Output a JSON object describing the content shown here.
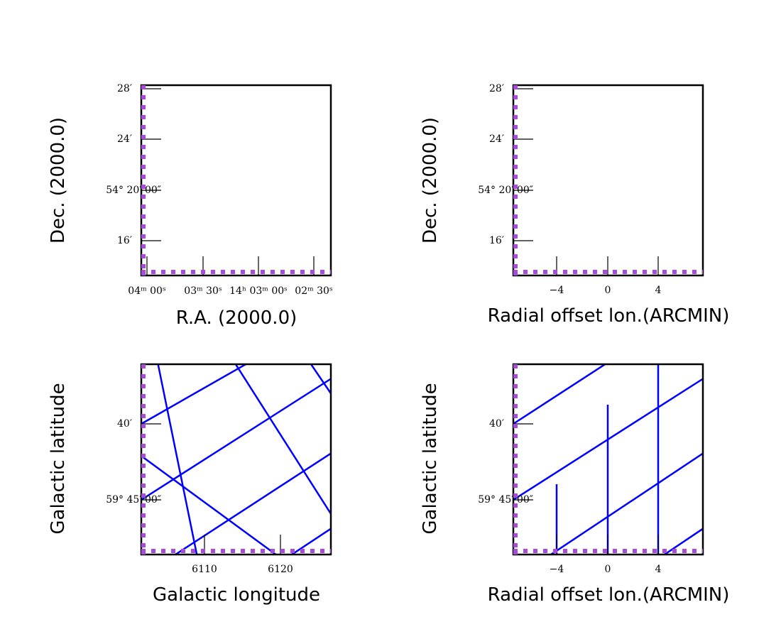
{
  "chart_data": [
    {
      "type": "other",
      "name": "panel-top-left",
      "xlabel": "R.A. (2000.0)",
      "ylabel": "Dec. (2000.0)",
      "x_ticks": [
        {
          "label": "04ᵐ 00ˢ"
        },
        {
          "label": "03ᵐ 30ˢ"
        },
        {
          "label": "14ʰ 03ᵐ 00ˢ"
        },
        {
          "label": "02ᵐ 30ˢ"
        }
      ],
      "y_ticks": [
        {
          "label": "28′"
        },
        {
          "label": "24′"
        },
        {
          "label": "54° 20′ 00″"
        },
        {
          "label": "16′"
        }
      ],
      "grid_lines": false,
      "dashed_axes": true
    },
    {
      "type": "other",
      "name": "panel-top-right",
      "xlabel": "Radial offset lon.(ARCMIN)",
      "ylabel": "Dec. (2000.0)",
      "x_ticks": [
        {
          "label": "−4"
        },
        {
          "label": "0"
        },
        {
          "label": "4"
        }
      ],
      "y_ticks": [
        {
          "label": "28′"
        },
        {
          "label": "24′"
        },
        {
          "label": "54° 20′ 00″"
        },
        {
          "label": "16′"
        }
      ],
      "grid_lines": false,
      "dashed_axes": true
    },
    {
      "type": "other",
      "name": "panel-bottom-left",
      "xlabel": "Galactic longitude",
      "ylabel": "Galactic latitude",
      "x_ticks": [
        {
          "label": "6110"
        },
        {
          "label": "6120"
        }
      ],
      "y_ticks": [
        {
          "label": "40′"
        },
        {
          "label": "59° 45′ 00″"
        }
      ],
      "grid_lines": true,
      "grid_color": "#0000ff",
      "dashed_axes": true
    },
    {
      "type": "other",
      "name": "panel-bottom-right",
      "xlabel": "Radial offset lon.(ARCMIN)",
      "ylabel": "Galactic latitude",
      "x_ticks": [
        {
          "label": "−4"
        },
        {
          "label": "0"
        },
        {
          "label": "4"
        }
      ],
      "y_ticks": [
        {
          "label": "40′"
        },
        {
          "label": "59° 45′ 00″"
        }
      ],
      "grid_lines": true,
      "grid_color": "#0000ff",
      "dashed_axes": true
    }
  ],
  "colors": {
    "frame": "#000000",
    "grid": "#0000ff",
    "dashed_axis": "#a64bdb",
    "background": "#ffffff"
  }
}
